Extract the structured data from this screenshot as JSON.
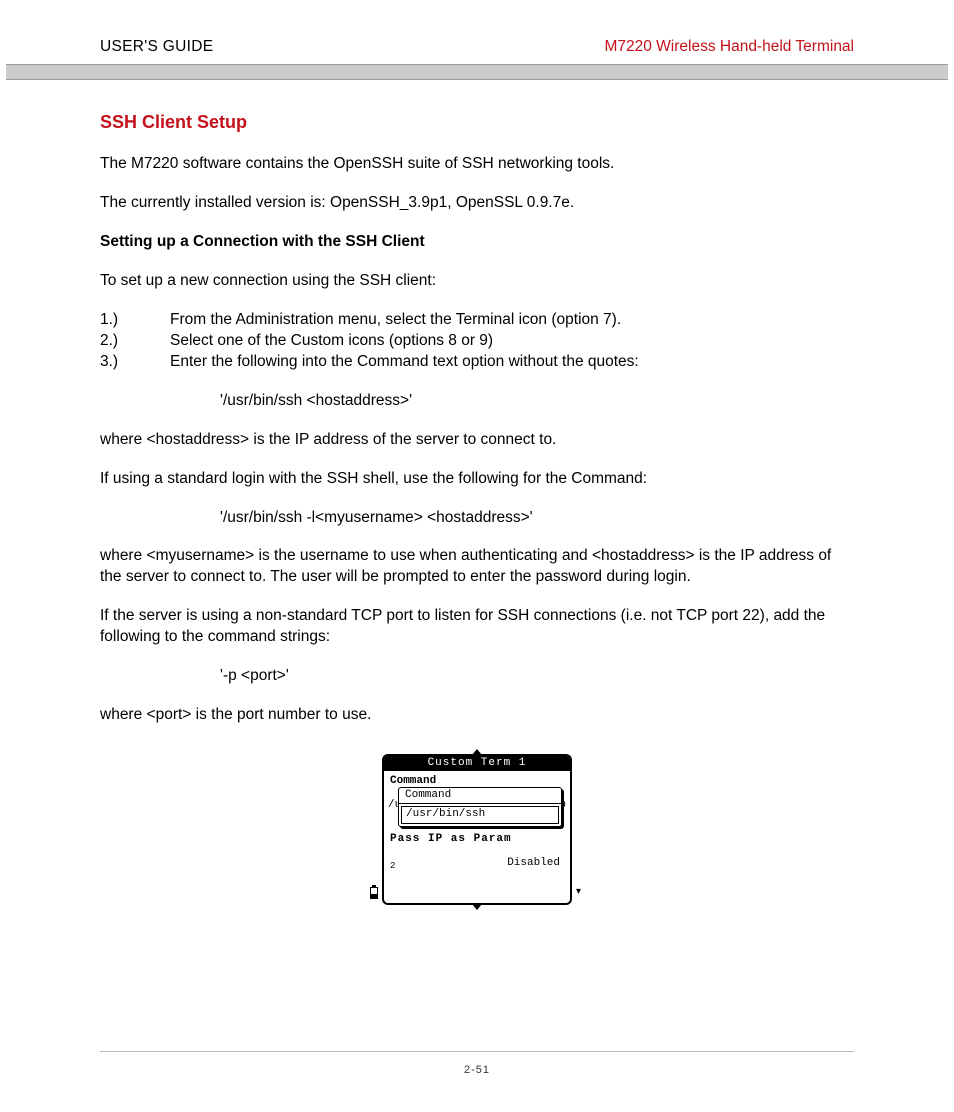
{
  "header": {
    "left": "USER'S GUIDE",
    "right": "M7220 Wireless Hand-held Terminal",
    "accent_color": "#c4111a"
  },
  "section": {
    "title": "SSH Client Setup",
    "intro_1": "The M7220 software contains the OpenSSH suite of SSH networking tools.",
    "intro_2": "The currently installed version is: OpenSSH_3.9p1, OpenSSL 0.9.7e.",
    "subheading": "Setting up a Connection with the SSH Client",
    "lead_in": "To set up a new connection using the SSH client:",
    "steps": [
      {
        "num": "1.)",
        "text": "From the Administration menu, select the Terminal icon (option 7)."
      },
      {
        "num": "2.)",
        "text": "Select one of the Custom icons (options 8 or 9)"
      },
      {
        "num": "3.)",
        "text": "Enter the following into the Command text option without the quotes:"
      }
    ],
    "cmd_1": "'/usr/bin/ssh <hostaddress>'",
    "explain_1": "where <hostaddress> is the IP address of the server to connect to.",
    "para_std_login": "If using a standard login with the SSH shell, use the following for the Command:",
    "cmd_2": "'/usr/bin/ssh -l<myusername> <hostaddress>'",
    "explain_2": "where <myusername> is the username to use when authenticating and <hostaddress> is the IP address of the server to connect to.  The user will be prompted to enter the password during login.",
    "para_port": "If the server is using a non-standard TCP port to listen for SSH connections (i.e. not TCP port 22), add the following to the command strings:",
    "cmd_3": "'-p <port>'",
    "explain_3": "where <port> is the port number to use."
  },
  "terminal_figure": {
    "title": "Custom Term 1",
    "bg_command_label": "Command",
    "bg_left_char": "/u",
    "bg_right_char": "p",
    "popup_title": "Command",
    "popup_value": "/usr/bin/ssh",
    "pass_label": "Pass IP as Param",
    "disabled_label": "Disabled",
    "corner_num": "2"
  },
  "footer": {
    "page_number": "2-51"
  }
}
